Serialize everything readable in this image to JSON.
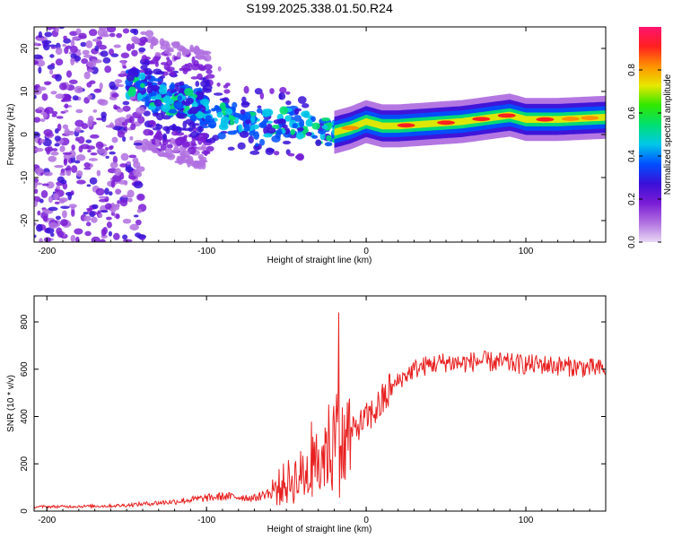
{
  "chart_data": [
    {
      "type": "heatmap",
      "title": "S199.2025.338.01.50.R24",
      "xlabel": "Height of straight line (km)",
      "ylabel": "Frequency (Hz)",
      "xlim": [
        -208,
        150
      ],
      "ylim": [
        -25,
        25
      ],
      "xticks": [
        -200,
        -100,
        0,
        100
      ],
      "yticks": [
        -20,
        -10,
        0,
        10,
        20
      ],
      "colorbar": {
        "label": "Normalized spectral amplitude",
        "range": [
          0,
          1
        ],
        "ticks": [
          0.0,
          0.2,
          0.4,
          0.6,
          0.8
        ],
        "colormap": [
          "#e8d8f4",
          "#b070e0",
          "#7a1cd6",
          "#3a10d8",
          "#0050ff",
          "#00c8e8",
          "#00e070",
          "#30e800",
          "#e8e800",
          "#ff9000",
          "#ff2020",
          "#ff1470"
        ]
      },
      "ridge": [
        {
          "x": -145,
          "f": 12
        },
        {
          "x": -130,
          "f": 8
        },
        {
          "x": -110,
          "f": 7
        },
        {
          "x": -90,
          "f": 4
        },
        {
          "x": -70,
          "f": 2
        },
        {
          "x": -50,
          "f": 3
        },
        {
          "x": -30,
          "f": 1
        },
        {
          "x": -20,
          "f": 0.5
        },
        {
          "x": -10,
          "f": 1.5
        },
        {
          "x": 0,
          "f": 3
        },
        {
          "x": 10,
          "f": 2
        },
        {
          "x": 20,
          "f": 2
        },
        {
          "x": 40,
          "f": 2.5
        },
        {
          "x": 60,
          "f": 3
        },
        {
          "x": 80,
          "f": 4
        },
        {
          "x": 90,
          "f": 4.5
        },
        {
          "x": 100,
          "f": 3.5
        },
        {
          "x": 120,
          "f": 3.5
        },
        {
          "x": 150,
          "f": 4
        }
      ]
    },
    {
      "type": "line",
      "xlabel": "Height of straight line (km)",
      "ylabel": "SNR (10 * v/v)",
      "xlim": [
        -208,
        150
      ],
      "ylim": [
        0,
        910
      ],
      "xticks": [
        -200,
        -100,
        0,
        100
      ],
      "yticks": [
        0,
        200,
        400,
        600,
        800
      ],
      "series": [
        {
          "name": "SNR",
          "color": "#e82020",
          "x": [
            -208,
            -180,
            -160,
            -150,
            -140,
            -130,
            -120,
            -110,
            -100,
            -90,
            -80,
            -70,
            -60,
            -50,
            -40,
            -30,
            -25,
            -20,
            -15,
            -10,
            -5,
            0,
            5,
            10,
            15,
            20,
            30,
            40,
            50,
            60,
            70,
            80,
            90,
            100,
            110,
            120,
            130,
            140,
            150
          ],
          "y": [
            18,
            20,
            22,
            25,
            30,
            35,
            40,
            48,
            55,
            62,
            60,
            55,
            80,
            120,
            150,
            190,
            260,
            300,
            260,
            330,
            360,
            390,
            420,
            460,
            510,
            550,
            600,
            620,
            630,
            625,
            635,
            630,
            625,
            620,
            620,
            615,
            610,
            605,
            600
          ]
        }
      ]
    }
  ]
}
